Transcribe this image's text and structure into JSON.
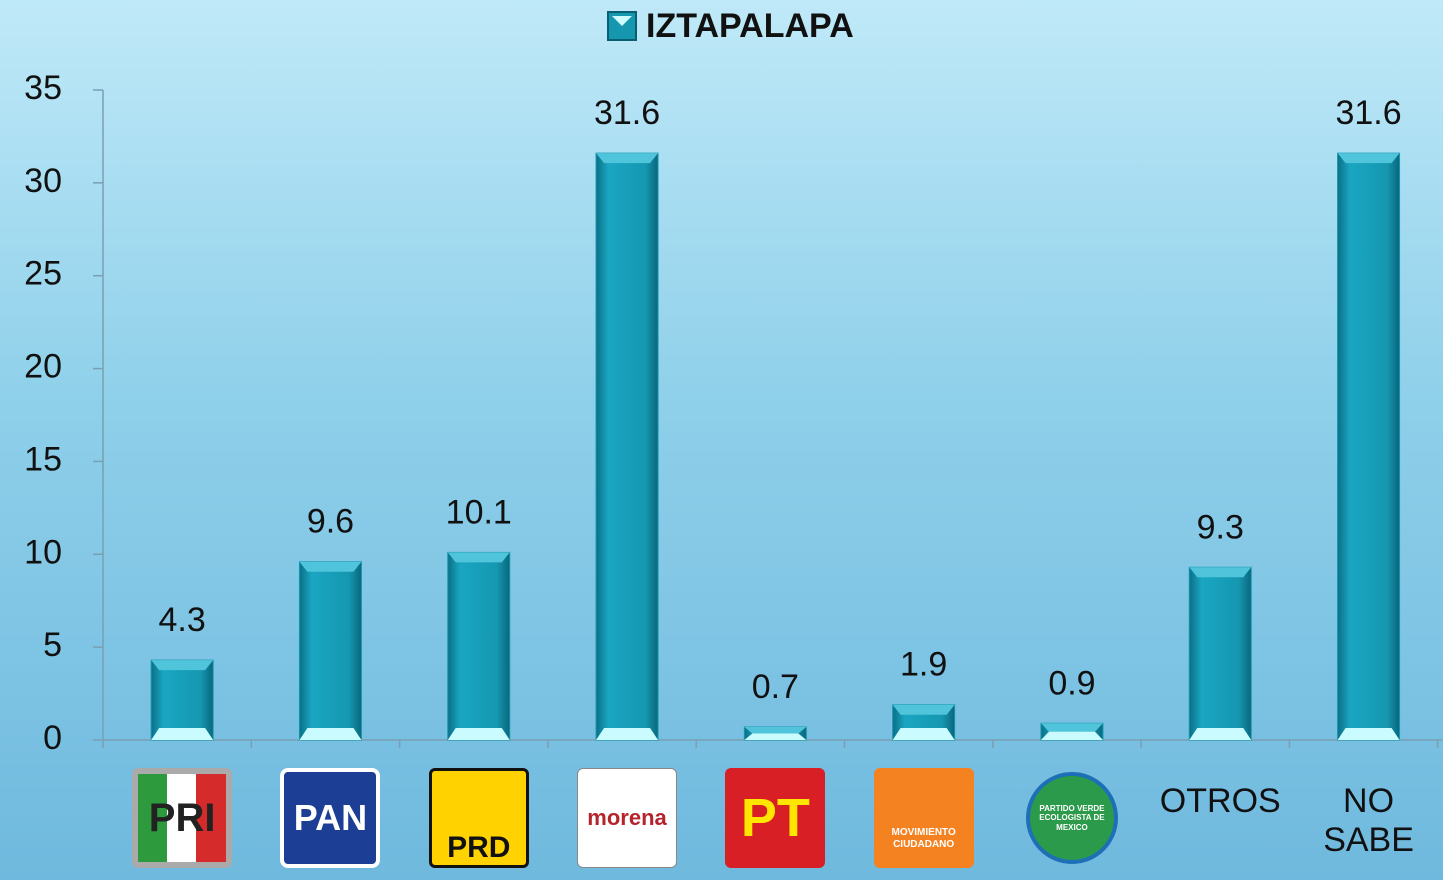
{
  "chart_data": {
    "type": "bar",
    "categories": [
      "PRI",
      "PAN",
      "PRD",
      "morena",
      "PT",
      "MOVIMIENTO CIUDADANO",
      "PARTIDO VERDE ECOLOGISTA DE MEXICO",
      "OTROS",
      "NO SABE"
    ],
    "series": [
      {
        "name": "IZTAPALAPA",
        "color": "#1597b0",
        "values": [
          4.3,
          9.6,
          10.1,
          31.6,
          0.7,
          1.9,
          0.9,
          9.3,
          31.6
        ]
      }
    ],
    "ylim": [
      0,
      35
    ],
    "yticks": [
      0,
      5,
      10,
      15,
      20,
      25,
      30,
      35
    ],
    "legend": "top"
  }
}
